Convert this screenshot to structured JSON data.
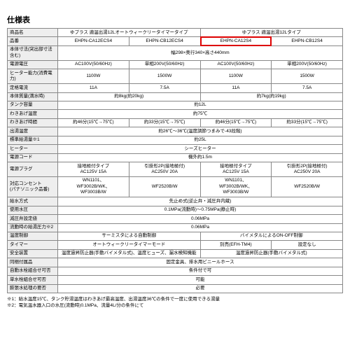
{
  "title": "仕様表",
  "rows": {
    "product_name": {
      "label": "商品名",
      "c12": "ゆプラス 適温出湯12Lオートウィークリータイマータイプ",
      "c34": "ゆプラス 適温出湯12Lタイプ"
    },
    "model": {
      "label": "品番",
      "c1": "EHPN-CA12ECS4",
      "c2": "EHPN-CB12ECS4",
      "c3": "EHPN-CA12S4",
      "c4": "EHPN-CB12S4"
    },
    "size": {
      "label": "本体寸法(突出部寸法含む)",
      "all": "幅298×奥行340×高さ440mm"
    },
    "voltage": {
      "label": "電源電圧",
      "c1": "AC100V(50/60Hz)",
      "c2": "単相200V(50/60Hz)",
      "c3": "AC100V(50/60Hz)",
      "c4": "単相200V(50/60Hz)"
    },
    "heater": {
      "label": "ヒーター能力(消費電力)",
      "c1": "1100W",
      "c2": "1500W",
      "c3": "1100W",
      "c4": "1500W"
    },
    "current": {
      "label": "定格電流",
      "c1": "11A",
      "c2": "7.5A",
      "c3": "11A",
      "c4": "7.5A"
    },
    "weight": {
      "label": "本体質量(満水時)",
      "c12": "約8kg(約20kg)",
      "c34": "約7kg(約19kg)"
    },
    "tank": {
      "label": "タンク容量",
      "all": "約12L"
    },
    "boil_temp": {
      "label": "わきあげ温度",
      "all": "約75℃"
    },
    "boil_time": {
      "label": "わきあげ時間",
      "c1": "約46分(15℃→75℃)",
      "c2": "約33分(15℃→75℃)",
      "c3": "約46分(15℃→75℃)",
      "c4": "約33分(15℃→75℃)"
    },
    "out_temp": {
      "label": "出湯温度",
      "all": "約26℃～36℃(温度調節つまみで-43段階)"
    },
    "std_water": {
      "label": "標準給湯量※1",
      "all": "約25L"
    },
    "heater2": {
      "label": "ヒーター",
      "all": "シーズヒーター"
    },
    "cord": {
      "label": "電源コード",
      "all": "機外約1.5m"
    },
    "plug": {
      "label": "電源プラグ",
      "c1": "接地極付タイプ\nAC125V 15A",
      "c2": "引掛形2P(接地極付)\nAC250V 20A",
      "c3": "接地極付タイプ\nAC125V 15A",
      "c4": "引掛形2P(接地極付)\nAC250V 20A"
    },
    "outlet": {
      "label": "対応コンセント\n(パナソニック品番)",
      "c1": "WN1101、\nWF3002B/WK、\nWF3003B/W",
      "c2": "WF2520B/W",
      "c3": "WN1101、\nWF3002B/WK、\nWF3003B/W",
      "c4": "WF2520B/W"
    },
    "supply": {
      "label": "給水方式",
      "all": "先止め式(逆止弁・減圧弁内蔵)"
    },
    "pressure": {
      "label": "使用水圧",
      "all": "0.1MPa(流動時)～0.75MPa(静止時)"
    },
    "relief": {
      "label": "減圧弁設定値",
      "all": "0.06MPa"
    },
    "flow_p": {
      "label": "流動時の給湯圧力※2",
      "all": "0.06MPa"
    },
    "temp_ctrl": {
      "label": "温度制御",
      "c12": "サーミスタによる自動制御",
      "c34": "バイメタルによるON-OFF制御"
    },
    "timer": {
      "label": "タイマー",
      "c12": "オートウィークリータイマーモード",
      "c3": "別売(EFH-TM4)",
      "c4": "設定なし"
    },
    "safety": {
      "label": "安全装置",
      "c12": "温度過昇防止器(手動バイメタル式)、温度ヒューズ、漏水検知機能",
      "c34": "温度過昇防止器(手動バイメタル式)"
    },
    "parts": {
      "label": "同梱付属品",
      "all": "固定金具、排水用ビニールホース"
    },
    "auto_comb": {
      "label": "自動水栓組合せ可否",
      "all": "条件付で可"
    },
    "single_comb": {
      "label": "単水栓組合せ可否",
      "all": "可能"
    },
    "drain": {
      "label": "膨張水処理の要否",
      "all": "必要"
    }
  },
  "footnotes": {
    "f1": "※1：給水温度15℃、タンク貯湯温度はわきあげ最高温度、出湯温度36℃の条件で一度に使用できる湯量",
    "f2": "※2：電気温水器入口の水圧(流動時)0.1MPa、流量4L/分の条件にて"
  },
  "colors": {
    "border": "#888888",
    "header_bg": "#eeeeee",
    "highlight": "#cc0000"
  }
}
